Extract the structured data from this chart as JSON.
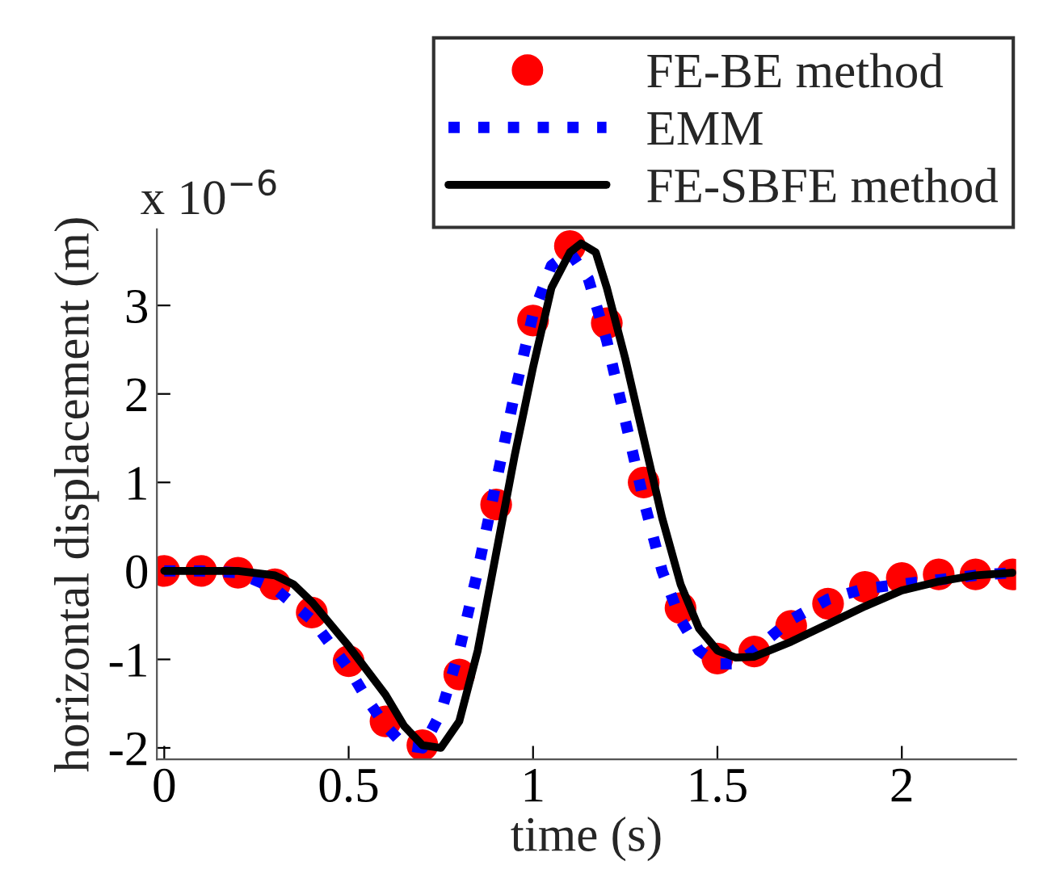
{
  "chart_data": {
    "type": "line",
    "xlabel": "time (s)",
    "ylabel": "horizontal displacement (m)",
    "annotations": [
      "x 10$^{−6}$"
    ],
    "xlim": [
      -0.02,
      2.31
    ],
    "ylim": [
      -2.13,
      3.86
    ],
    "xticks": [
      0,
      0.5,
      1,
      1.5,
      2
    ],
    "yticks": [
      -2,
      -1,
      0,
      1,
      2,
      3
    ],
    "grid": false,
    "legend": "top right",
    "series": [
      {
        "name": "FE-BE method",
        "type": "scatter",
        "color": "#ff0000",
        "marker": "circle",
        "x": [
          0,
          0.1,
          0.2,
          0.3,
          0.4,
          0.5,
          0.6,
          0.7,
          0.8,
          0.9,
          1.0,
          1.1,
          1.2,
          1.3,
          1.4,
          1.5,
          1.6,
          1.7,
          1.8,
          1.9,
          2.0,
          2.1,
          2.2,
          2.3
        ],
        "values": [
          0,
          0,
          -0.02,
          -0.15,
          -0.47,
          -1.02,
          -1.7,
          -1.97,
          -1.17,
          0.75,
          2.83,
          3.67,
          2.8,
          1.0,
          -0.42,
          -0.99,
          -0.91,
          -0.62,
          -0.37,
          -0.18,
          -0.08,
          -0.04,
          -0.04,
          -0.04
        ]
      },
      {
        "name": "EMM",
        "color": "#0000ff",
        "line_style": "dotted",
        "x": [
          0,
          0.1,
          0.2,
          0.3,
          0.4,
          0.5,
          0.55,
          0.6,
          0.65,
          0.7,
          0.75,
          0.8,
          0.85,
          0.9,
          0.95,
          1.0,
          1.05,
          1.1,
          1.15,
          1.2,
          1.25,
          1.3,
          1.35,
          1.4,
          1.45,
          1.5,
          1.55,
          1.6,
          1.7,
          1.8,
          1.9,
          2.0,
          2.1,
          2.2,
          2.3
        ],
        "values": [
          0,
          0,
          -0.02,
          -0.2,
          -0.55,
          -1.1,
          -1.45,
          -1.75,
          -1.97,
          -2.0,
          -1.6,
          -0.9,
          0.0,
          1.0,
          2.0,
          2.9,
          3.45,
          3.6,
          3.3,
          2.6,
          1.7,
          0.8,
          0.0,
          -0.55,
          -0.9,
          -1.05,
          -1.05,
          -0.9,
          -0.55,
          -0.32,
          -0.2,
          -0.15,
          -0.1,
          -0.05,
          -0.02
        ]
      },
      {
        "name": "FE-SBFE method",
        "color": "#000000",
        "line_style": "solid",
        "x": [
          0,
          0.1,
          0.2,
          0.3,
          0.35,
          0.4,
          0.5,
          0.6,
          0.65,
          0.7,
          0.75,
          0.8,
          0.85,
          0.9,
          0.95,
          1.0,
          1.05,
          1.1,
          1.13,
          1.17,
          1.2,
          1.25,
          1.3,
          1.35,
          1.4,
          1.45,
          1.5,
          1.55,
          1.6,
          1.7,
          1.8,
          1.9,
          2.0,
          2.1,
          2.2,
          2.3
        ],
        "values": [
          0,
          0,
          0,
          -0.05,
          -0.15,
          -0.35,
          -0.85,
          -1.4,
          -1.75,
          -1.97,
          -2.0,
          -1.7,
          -0.9,
          0.2,
          1.3,
          2.3,
          3.2,
          3.6,
          3.7,
          3.6,
          3.2,
          2.4,
          1.5,
          0.6,
          -0.15,
          -0.65,
          -0.9,
          -0.98,
          -0.97,
          -0.8,
          -0.6,
          -0.4,
          -0.22,
          -0.12,
          -0.05,
          -0.02
        ]
      }
    ]
  }
}
